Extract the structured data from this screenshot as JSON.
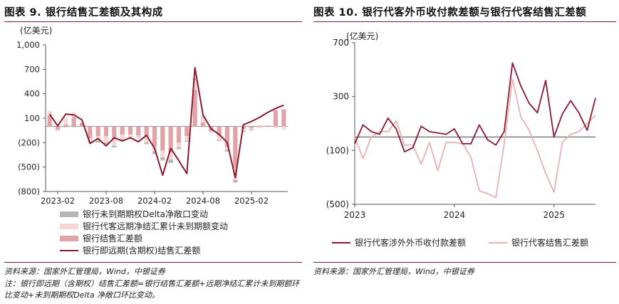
{
  "left": {
    "title": "图表 9. 银行结售汇差额及其构成",
    "unit": "(亿美元)",
    "source": "资料来源：国家外汇管理局，Wind，中银证券",
    "note": "注：银行即远期（含期权）结售汇差额=银行结售汇差额+远期净结汇累计未到期额环比变动+未到期期权Delta 净敞口环比变动。",
    "legend": [
      {
        "label": "银行未到期期权Delta净敞口变动"
      },
      {
        "label": "银行代客远期净结汇累计未到期额变动"
      },
      {
        "label": "银行结售汇差额"
      },
      {
        "label": "银行即远期(含期权)结售汇差额"
      }
    ]
  },
  "right": {
    "title": "图表 10. 银行代客外币收付款差额与银行代客结售汇差额",
    "unit": "(亿美元)",
    "source": "资料来源：国家外汇管理局，Wind，中银证券",
    "legend": [
      {
        "label": "银行代客涉外外币收付款差额"
      },
      {
        "label": "银行代客结售汇差额"
      }
    ]
  },
  "colors": {
    "dark_red": "#8b1a2e",
    "mid_red": "#e2a3a8",
    "light_pink": "#f3d7d7",
    "gray": "#b5b5b5",
    "light_line": "#eab0b3",
    "axis": "#555555"
  },
  "chart_data": [
    {
      "type": "bar",
      "title": "银行结售汇差额及其构成",
      "ylabel": "(亿美元)",
      "ylim": [
        -800,
        1000
      ],
      "yticks": [
        -800,
        -500,
        -200,
        100,
        400,
        700,
        1000
      ],
      "ytick_labels": [
        "(800)",
        "(500)",
        "(200)",
        "100",
        "400",
        "700",
        "1,000"
      ],
      "x": [
        "2023-01",
        "2023-02",
        "2023-03",
        "2023-04",
        "2023-05",
        "2023-06",
        "2023-07",
        "2023-08",
        "2023-09",
        "2023-10",
        "2023-11",
        "2023-12",
        "2024-01",
        "2024-02",
        "2024-03",
        "2024-04",
        "2024-05",
        "2024-06",
        "2024-07",
        "2024-08",
        "2024-09",
        "2024-10",
        "2024-11",
        "2024-12",
        "2025-01",
        "2025-02",
        "2025-03",
        "2025-04",
        "2025-05",
        "2025-06"
      ],
      "xtick_labels": [
        "2023-02",
        "2023-08",
        "2024-02",
        "2024-08",
        "2025-02"
      ],
      "series": [
        {
          "name": "银行结售汇差额",
          "kind": "bar",
          "values": [
            130,
            -40,
            20,
            110,
            40,
            -150,
            -120,
            -120,
            -160,
            -100,
            -100,
            -110,
            -130,
            -250,
            -300,
            -320,
            -200,
            -120,
            450,
            50,
            -60,
            -110,
            -250,
            -510,
            -30,
            -20,
            10,
            10,
            200,
            210
          ]
        },
        {
          "name": "银行代客远期净结汇累计未到期额变动",
          "kind": "bar",
          "values": [
            60,
            -20,
            80,
            60,
            10,
            -40,
            -60,
            -80,
            -80,
            -60,
            -40,
            -20,
            -70,
            -60,
            -80,
            -90,
            -60,
            -60,
            120,
            60,
            -20,
            -60,
            -40,
            -150,
            -30,
            -20,
            -20,
            0,
            -20,
            -40
          ]
        },
        {
          "name": "银行未到期期权Delta净敞口变动",
          "kind": "bar",
          "values": [
            0,
            0,
            -10,
            -10,
            0,
            -10,
            -20,
            -20,
            -20,
            -10,
            -10,
            -10,
            -20,
            -30,
            -40,
            -40,
            -20,
            -10,
            20,
            10,
            0,
            -10,
            -20,
            -30,
            -10,
            -10,
            0,
            0,
            0,
            0
          ]
        },
        {
          "name": "银行即远期(含期权)结售汇差额",
          "kind": "line",
          "values": [
            150,
            5,
            150,
            140,
            80,
            -210,
            -150,
            -240,
            -140,
            -180,
            -140,
            -190,
            -110,
            -270,
            -600,
            -270,
            -420,
            -580,
            720,
            140,
            -30,
            -100,
            -200,
            -630,
            20,
            60,
            110,
            170,
            220,
            260
          ]
        }
      ]
    },
    {
      "type": "line",
      "title": "银行代客外币收付款差额与银行代客结售汇差额",
      "ylabel": "(亿美元)",
      "ylim": [
        -500,
        700
      ],
      "yticks": [
        -500,
        -100,
        300,
        700
      ],
      "ytick_labels": [
        "(500)",
        "(100)",
        "300",
        "700"
      ],
      "x": [
        "2023-01",
        "2023-02",
        "2023-03",
        "2023-04",
        "2023-05",
        "2023-06",
        "2023-07",
        "2023-08",
        "2023-09",
        "2023-10",
        "2023-11",
        "2023-12",
        "2024-01",
        "2024-02",
        "2024-03",
        "2024-04",
        "2024-05",
        "2024-06",
        "2024-07",
        "2024-08",
        "2024-09",
        "2024-10",
        "2024-11",
        "2024-12",
        "2025-01",
        "2025-02",
        "2025-03",
        "2025-04",
        "2025-05",
        "2025-06"
      ],
      "xtick_labels": [
        "2023",
        "2024",
        "2025"
      ],
      "series": [
        {
          "name": "银行代客涉外外币收付款差额",
          "color": "#8b1a2e",
          "values": [
            -50,
            90,
            40,
            20,
            140,
            60,
            -110,
            -80,
            80,
            40,
            30,
            20,
            60,
            -50,
            -50,
            90,
            -20,
            -60,
            40,
            550,
            380,
            250,
            180,
            420,
            0,
            170,
            270,
            180,
            50,
            290
          ]
        },
        {
          "name": "银行代客结售汇差额",
          "color": "#eab0b3",
          "values": [
            0,
            -160,
            0,
            40,
            40,
            120,
            -60,
            -60,
            -200,
            -40,
            -250,
            -40,
            -40,
            -50,
            -150,
            -400,
            -420,
            -450,
            -50,
            430,
            150,
            50,
            -100,
            -270,
            -410,
            -40,
            20,
            40,
            100,
            160
          ]
        }
      ]
    }
  ]
}
